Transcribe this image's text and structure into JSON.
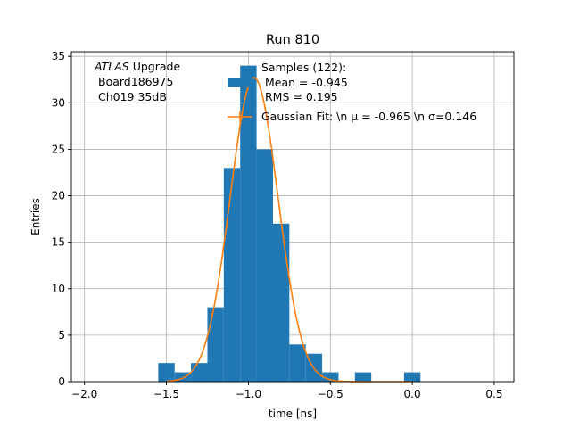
{
  "chart_data": {
    "type": "histogram",
    "title": "Run 810",
    "xlabel": "time [ns]",
    "ylabel": "Entries",
    "xlim": [
      -2.08,
      0.62
    ],
    "ylim": [
      0,
      35.5
    ],
    "xticks": [
      -2.0,
      -1.5,
      -1.0,
      -0.5,
      0.0,
      0.5
    ],
    "xtick_labels": [
      "−2.0",
      "−1.5",
      "−1.0",
      "−0.5",
      "0.0",
      "0.5"
    ],
    "yticks": [
      0,
      5,
      10,
      15,
      20,
      25,
      30,
      35
    ],
    "ytick_labels": [
      "0",
      "5",
      "10",
      "15",
      "20",
      "25",
      "30",
      "35"
    ],
    "grid": true,
    "bin_edges": [
      -1.55,
      -1.45,
      -1.35,
      -1.25,
      -1.15,
      -1.05,
      -0.95,
      -0.85,
      -0.75,
      -0.65,
      -0.55,
      -0.45,
      -0.35,
      -0.25,
      -0.15,
      -0.05,
      0.05,
      0.15
    ],
    "counts": [
      2,
      1,
      2,
      8,
      23,
      34,
      25,
      17,
      4,
      3,
      1,
      0,
      1,
      0,
      0,
      1,
      0
    ],
    "fit": {
      "label": "Gaussian Fit: \\n μ = -0.965 \\n σ=0.146",
      "mu": -0.965,
      "sigma": 0.146,
      "amplitude": 32.7,
      "x_range": [
        -1.5,
        0.0
      ]
    },
    "annotations": {
      "experiment": "ATLAS",
      "experiment_suffix": " Upgrade",
      "board": "Board186975",
      "channel": "Ch019 35dB"
    },
    "legend": {
      "position": "top-right",
      "hist_label_line1": "Samples (122):",
      "hist_label_line2": "Mean = -0.945",
      "hist_label_line3": "RMS = 0.195",
      "fit_label": "Gaussian Fit: \\n μ = -0.965 \\n σ=0.146"
    },
    "colors": {
      "hist": "#1f77b4",
      "fit": "#ff7f0e",
      "grid": "#b0b0b0"
    }
  }
}
